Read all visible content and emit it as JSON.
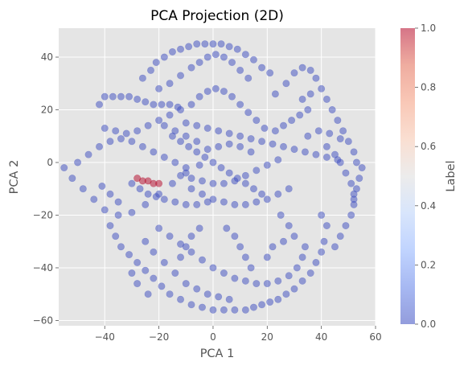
{
  "chart_data": {
    "type": "scatter",
    "title": "PCA Projection (2D)",
    "xlabel": "PCA 1",
    "ylabel": "PCA 2",
    "xlim": [
      -57,
      60
    ],
    "ylim": [
      -62,
      51
    ],
    "xticks": [
      -40,
      -20,
      0,
      20,
      40,
      60
    ],
    "yticks": [
      -60,
      -40,
      -20,
      0,
      20,
      40
    ],
    "xtick_labels": [
      "−40",
      "−20",
      "0",
      "20",
      "40",
      "60"
    ],
    "ytick_labels": [
      "−60",
      "−40",
      "−20",
      "0",
      "20",
      "40"
    ],
    "grid": true,
    "colorbar": {
      "label": "Label",
      "colormap": "coolwarm",
      "range": [
        0.0,
        1.0
      ],
      "ticks": [
        0.0,
        0.2,
        0.4,
        0.6,
        0.8,
        1.0
      ],
      "tick_labels": [
        "0.0",
        "0.2",
        "0.4",
        "0.6",
        "0.8",
        "1.0"
      ]
    },
    "colors": {
      "label_0": "#3b4cc0",
      "label_1": "#b40426",
      "plot_background": "#e5e5e5",
      "grid": "#ffffff"
    },
    "series": [
      {
        "label_value": 0,
        "points": [
          [
            -55,
            -2
          ],
          [
            -52,
            -6
          ],
          [
            -48,
            -10
          ],
          [
            -44,
            -14
          ],
          [
            -40,
            -18
          ],
          [
            -35,
            -20
          ],
          [
            -30,
            -19
          ],
          [
            -25,
            -16
          ],
          [
            -20,
            -12
          ],
          [
            -15,
            -8
          ],
          [
            -10,
            -4
          ],
          [
            -5,
            -1
          ],
          [
            -50,
            0
          ],
          [
            -46,
            3
          ],
          [
            -42,
            6
          ],
          [
            -38,
            8
          ],
          [
            -34,
            9
          ],
          [
            -30,
            8
          ],
          [
            -26,
            6
          ],
          [
            -22,
            4
          ],
          [
            -18,
            2
          ],
          [
            -14,
            0
          ],
          [
            -10,
            -2
          ],
          [
            -40,
            13
          ],
          [
            -36,
            12
          ],
          [
            -32,
            11
          ],
          [
            -28,
            12
          ],
          [
            -24,
            14
          ],
          [
            -20,
            16
          ],
          [
            -16,
            18
          ],
          [
            -12,
            20
          ],
          [
            -8,
            22
          ],
          [
            -42,
            22
          ],
          [
            -40,
            25
          ],
          [
            -37,
            25
          ],
          [
            -34,
            25
          ],
          [
            -31,
            25
          ],
          [
            -28,
            24
          ],
          [
            -25,
            23
          ],
          [
            -22,
            22
          ],
          [
            -19,
            22
          ],
          [
            -16,
            22
          ],
          [
            -13,
            21
          ],
          [
            -26,
            32
          ],
          [
            -23,
            35
          ],
          [
            -21,
            38
          ],
          [
            -18,
            40
          ],
          [
            -15,
            42
          ],
          [
            -12,
            43
          ],
          [
            -9,
            44
          ],
          [
            -6,
            45
          ],
          [
            -3,
            45
          ],
          [
            0,
            45
          ],
          [
            3,
            45
          ],
          [
            6,
            44
          ],
          [
            9,
            43
          ],
          [
            12,
            41
          ],
          [
            15,
            39
          ],
          [
            18,
            36
          ],
          [
            21,
            34
          ],
          [
            -20,
            28
          ],
          [
            -16,
            30
          ],
          [
            -12,
            33
          ],
          [
            -8,
            36
          ],
          [
            -5,
            38
          ],
          [
            -2,
            40
          ],
          [
            1,
            41
          ],
          [
            4,
            40
          ],
          [
            7,
            38
          ],
          [
            10,
            35
          ],
          [
            13,
            32
          ],
          [
            23,
            26
          ],
          [
            27,
            30
          ],
          [
            30,
            34
          ],
          [
            33,
            36
          ],
          [
            36,
            35
          ],
          [
            38,
            32
          ],
          [
            40,
            28
          ],
          [
            42,
            24
          ],
          [
            44,
            20
          ],
          [
            46,
            16
          ],
          [
            48,
            12
          ],
          [
            50,
            8
          ],
          [
            52,
            4
          ],
          [
            53,
            0
          ],
          [
            42,
            6
          ],
          [
            45,
            3
          ],
          [
            47,
            0
          ],
          [
            49,
            -4
          ],
          [
            51,
            -8
          ],
          [
            52,
            -12
          ],
          [
            52,
            -16
          ],
          [
            51,
            -20
          ],
          [
            49,
            -24
          ],
          [
            47,
            -28
          ],
          [
            45,
            -32
          ],
          [
            55,
            -2
          ],
          [
            54,
            -6
          ],
          [
            53,
            -10
          ],
          [
            52,
            -14
          ],
          [
            30,
            5
          ],
          [
            34,
            4
          ],
          [
            38,
            3
          ],
          [
            42,
            2
          ],
          [
            46,
            1
          ],
          [
            35,
            10
          ],
          [
            39,
            12
          ],
          [
            43,
            11
          ],
          [
            47,
            9
          ],
          [
            40,
            -20
          ],
          [
            42,
            -24
          ],
          [
            41,
            -30
          ],
          [
            40,
            -34
          ],
          [
            38,
            -38
          ],
          [
            36,
            -42
          ],
          [
            33,
            -45
          ],
          [
            30,
            -48
          ],
          [
            27,
            -50
          ],
          [
            24,
            -52
          ],
          [
            21,
            -53
          ],
          [
            18,
            -54
          ],
          [
            15,
            -55
          ],
          [
            12,
            -56
          ],
          [
            8,
            -56
          ],
          [
            4,
            -56
          ],
          [
            0,
            -56
          ],
          [
            -4,
            -55
          ],
          [
            -8,
            -54
          ],
          [
            -12,
            -52
          ],
          [
            -16,
            -50
          ],
          [
            -19,
            -47
          ],
          [
            -22,
            -44
          ],
          [
            -25,
            -41
          ],
          [
            -28,
            -38
          ],
          [
            -31,
            -35
          ],
          [
            -34,
            -32
          ],
          [
            -36,
            -28
          ],
          [
            -38,
            -24
          ],
          [
            -20,
            -25
          ],
          [
            -16,
            -28
          ],
          [
            -12,
            -31
          ],
          [
            -8,
            -34
          ],
          [
            -4,
            -37
          ],
          [
            0,
            -40
          ],
          [
            4,
            -42
          ],
          [
            8,
            -44
          ],
          [
            12,
            -45
          ],
          [
            16,
            -46
          ],
          [
            20,
            -46
          ],
          [
            24,
            -45
          ],
          [
            28,
            -43
          ],
          [
            31,
            -40
          ],
          [
            33,
            -36
          ],
          [
            34,
            -32
          ],
          [
            -25,
            -30
          ],
          [
            -22,
            -34
          ],
          [
            -18,
            -38
          ],
          [
            -14,
            -42
          ],
          [
            -10,
            -46
          ],
          [
            -6,
            -48
          ],
          [
            -2,
            -50
          ],
          [
            2,
            -51
          ],
          [
            6,
            -52
          ],
          [
            -30,
            -8
          ],
          [
            -27,
            -10
          ],
          [
            -24,
            -12
          ],
          [
            -21,
            -13
          ],
          [
            -18,
            -14
          ],
          [
            -14,
            -15
          ],
          [
            -10,
            -16
          ],
          [
            -6,
            -16
          ],
          [
            -2,
            -15
          ],
          [
            -15,
            10
          ],
          [
            -12,
            8
          ],
          [
            -9,
            6
          ],
          [
            -6,
            4
          ],
          [
            -3,
            2
          ],
          [
            0,
            0
          ],
          [
            3,
            -2
          ],
          [
            6,
            -4
          ],
          [
            9,
            -6
          ],
          [
            12,
            -8
          ],
          [
            15,
            -10
          ],
          [
            18,
            -12
          ],
          [
            -10,
            15
          ],
          [
            -6,
            14
          ],
          [
            -2,
            13
          ],
          [
            2,
            12
          ],
          [
            6,
            11
          ],
          [
            10,
            10
          ],
          [
            14,
            9
          ],
          [
            18,
            8
          ],
          [
            22,
            7
          ],
          [
            26,
            6
          ],
          [
            -8,
            -10
          ],
          [
            -4,
            -12
          ],
          [
            0,
            -14
          ],
          [
            4,
            -15
          ],
          [
            8,
            -16
          ],
          [
            12,
            -16
          ],
          [
            16,
            -15
          ],
          [
            20,
            -14
          ],
          [
            24,
            -12
          ],
          [
            28,
            -10
          ],
          [
            -5,
            25
          ],
          [
            -2,
            27
          ],
          [
            1,
            28
          ],
          [
            4,
            27
          ],
          [
            7,
            25
          ],
          [
            10,
            22
          ],
          [
            13,
            19
          ],
          [
            16,
            16
          ],
          [
            19,
            13
          ],
          [
            -12,
            -5
          ],
          [
            -8,
            -6
          ],
          [
            -4,
            -7
          ],
          [
            0,
            -8
          ],
          [
            4,
            -8
          ],
          [
            8,
            -7
          ],
          [
            12,
            -5
          ],
          [
            16,
            -3
          ],
          [
            20,
            -1
          ],
          [
            24,
            1
          ],
          [
            -2,
            5
          ],
          [
            2,
            6
          ],
          [
            6,
            7
          ],
          [
            10,
            6
          ],
          [
            14,
            4
          ],
          [
            -6,
            8
          ],
          [
            -10,
            10
          ],
          [
            -14,
            12
          ],
          [
            -18,
            14
          ],
          [
            5,
            -25
          ],
          [
            8,
            -28
          ],
          [
            10,
            -32
          ],
          [
            12,
            -36
          ],
          [
            14,
            -40
          ],
          [
            -5,
            -25
          ],
          [
            -8,
            -28
          ],
          [
            -10,
            -32
          ],
          [
            -12,
            -36
          ],
          [
            25,
            -20
          ],
          [
            28,
            -24
          ],
          [
            30,
            -28
          ],
          [
            26,
            -30
          ],
          [
            22,
            -32
          ],
          [
            20,
            -36
          ],
          [
            -30,
            -42
          ],
          [
            -28,
            -46
          ],
          [
            -24,
            -50
          ],
          [
            35,
            20
          ],
          [
            32,
            18
          ],
          [
            29,
            16
          ],
          [
            26,
            14
          ],
          [
            23,
            12
          ],
          [
            36,
            26
          ],
          [
            33,
            24
          ],
          [
            -35,
            -15
          ],
          [
            -38,
            -12
          ],
          [
            -41,
            -9
          ]
        ]
      },
      {
        "label_value": 1,
        "points": [
          [
            -28,
            -6
          ],
          [
            -26,
            -7
          ],
          [
            -24,
            -7
          ],
          [
            -22,
            -8
          ],
          [
            -20,
            -8
          ]
        ]
      }
    ]
  }
}
